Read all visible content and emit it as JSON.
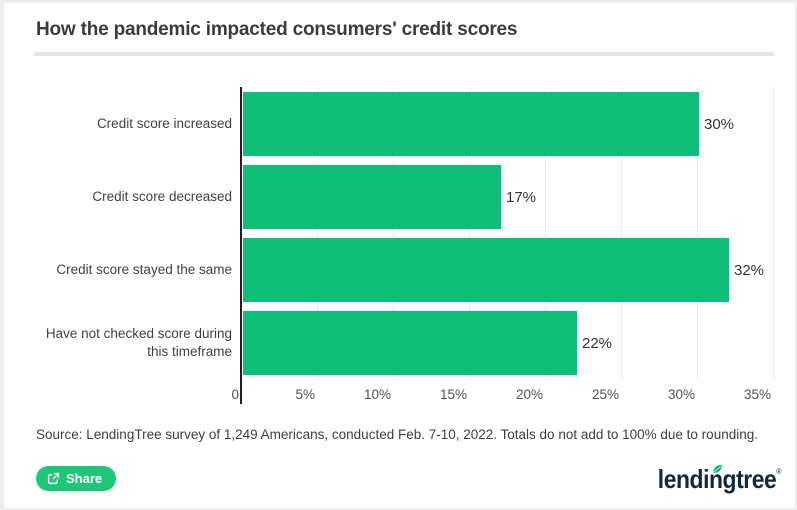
{
  "title": "How the pandemic impacted consumers' credit scores",
  "chart_data": {
    "type": "bar",
    "orientation": "horizontal",
    "categories": [
      "Credit score increased",
      "Credit score decreased",
      "Credit score stayed the same",
      "Have not checked score during this timeframe"
    ],
    "values": [
      30,
      17,
      32,
      22
    ],
    "value_labels": [
      "30%",
      "17%",
      "32%",
      "22%"
    ],
    "x_ticks": [
      "0",
      "5%",
      "10%",
      "15%",
      "20%",
      "25%",
      "30%",
      "35%"
    ],
    "x_tick_values": [
      0,
      5,
      10,
      15,
      20,
      25,
      30,
      35
    ],
    "xlim": [
      0,
      35
    ],
    "grid": true,
    "legend_position": "none",
    "bar_color": "#0ebd78"
  },
  "source_note": "Source: LendingTree survey of 1,249 Americans, conducted Feb. 7-10, 2022. Totals do not add to 100% due to rounding.",
  "footer": {
    "share_label": "Share",
    "brand_part1": "lendi",
    "brand_leaf_letter": "n",
    "brand_part2": "gtree",
    "brand_mark": "®"
  },
  "colors": {
    "bar_green": "#0ebd78",
    "button_green": "#1ec878",
    "leaf_green": "#00b871",
    "brand_navy": "#12283c",
    "title_gray": "#3b3b3b",
    "axis_black": "#1f1f1f",
    "grid_gray": "#e9e9e9"
  }
}
